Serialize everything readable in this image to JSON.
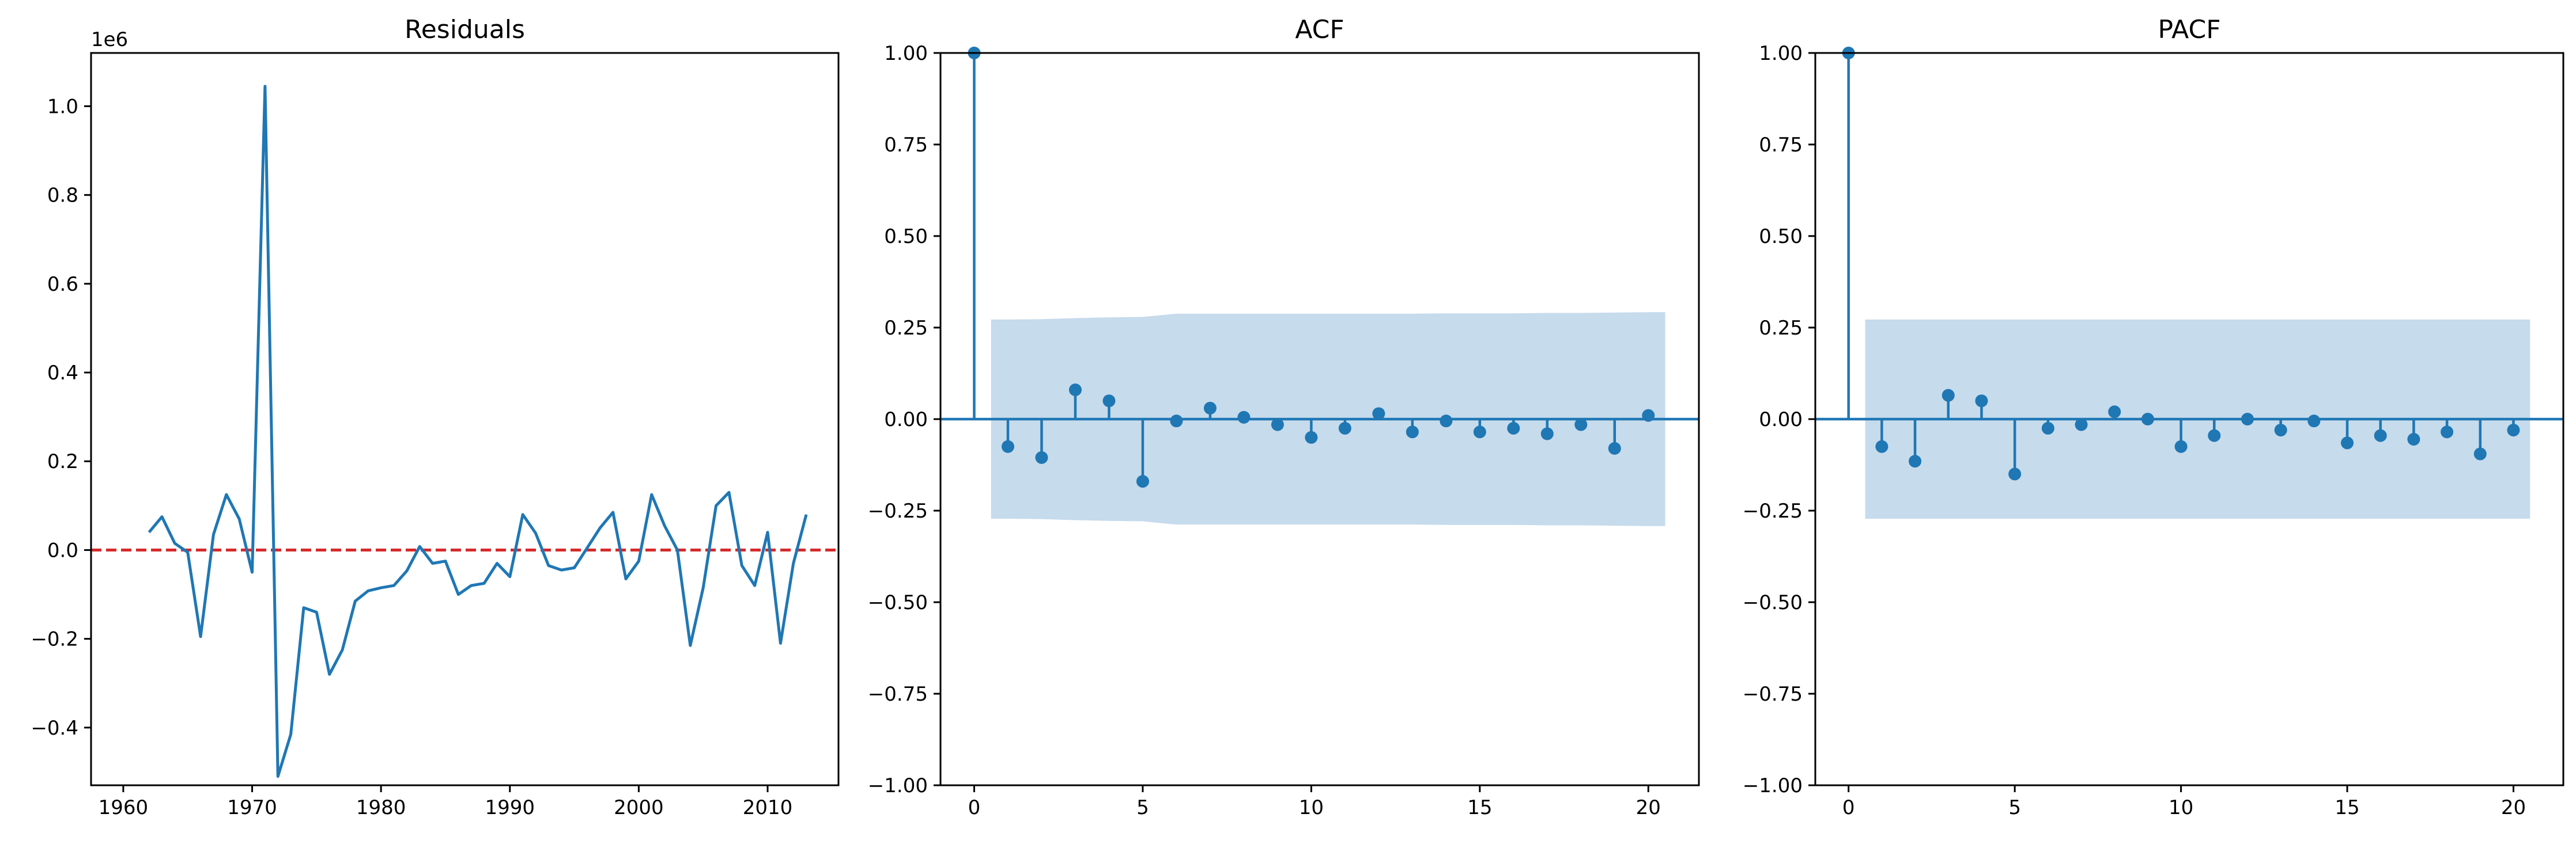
{
  "colors": {
    "line": "#1f77b4",
    "zero_line": "#d62728",
    "conf_band": "#c6dbec",
    "axes": "#000000",
    "background": "#ffffff"
  },
  "chart_data": [
    {
      "type": "line",
      "title": "Residuals",
      "y_offset_label": "1e6",
      "xlabel": "",
      "ylabel": "",
      "grid": false,
      "xlim": [
        1957.5,
        2015.5
      ],
      "ylim": [
        -0.53,
        1.12
      ],
      "x_ticks": [
        1960,
        1970,
        1980,
        1990,
        2000,
        2010
      ],
      "x_tick_labels": [
        "1960",
        "1970",
        "1980",
        "1990",
        "2000",
        "2010"
      ],
      "y_ticks": [
        -0.4,
        -0.2,
        0.0,
        0.2,
        0.4,
        0.6,
        0.8,
        1.0
      ],
      "y_tick_labels": [
        "−0.4",
        "−0.2",
        "0.0",
        "0.2",
        "0.4",
        "0.6",
        "0.8",
        "1.0"
      ],
      "reference_line": {
        "y": 0,
        "style": "dashed"
      },
      "series": [
        {
          "x": [
            1962,
            1963,
            1964,
            1965,
            1966,
            1967,
            1968,
            1969,
            1970,
            1971,
            1972,
            1973,
            1974,
            1975,
            1976,
            1977,
            1978,
            1979,
            1980,
            1981,
            1982,
            1983,
            1984,
            1985,
            1986,
            1987,
            1988,
            1989,
            1990,
            1991,
            1992,
            1993,
            1994,
            1995,
            1996,
            1997,
            1998,
            1999,
            2000,
            2001,
            2002,
            2003,
            2004,
            2005,
            2006,
            2007,
            2008,
            2009,
            2010,
            2011,
            2012,
            2013
          ],
          "y": [
            0.04,
            0.075,
            0.015,
            -0.005,
            -0.195,
            0.035,
            0.125,
            0.07,
            -0.05,
            1.045,
            -0.51,
            -0.415,
            -0.13,
            -0.14,
            -0.28,
            -0.225,
            -0.115,
            -0.092,
            -0.085,
            -0.08,
            -0.047,
            0.008,
            -0.03,
            -0.025,
            -0.1,
            -0.08,
            -0.075,
            -0.03,
            -0.06,
            0.08,
            0.038,
            -0.035,
            -0.045,
            -0.04,
            0.005,
            0.05,
            0.085,
            -0.065,
            -0.025,
            0.125,
            0.055,
            0.0,
            -0.215,
            -0.085,
            0.1,
            0.13,
            -0.035,
            -0.08,
            0.04,
            -0.21,
            -0.03,
            0.08
          ]
        }
      ]
    },
    {
      "type": "stem",
      "title": "ACF",
      "xlabel": "",
      "ylabel": "",
      "grid": false,
      "xlim": [
        -1.0,
        21.5
      ],
      "ylim": [
        -1.0,
        1.0
      ],
      "x_ticks": [
        0,
        5,
        10,
        15,
        20
      ],
      "x_tick_labels": [
        "0",
        "5",
        "10",
        "15",
        "20"
      ],
      "y_ticks": [
        -1.0,
        -0.75,
        -0.5,
        -0.25,
        0.0,
        0.25,
        0.5,
        0.75,
        1.0
      ],
      "y_tick_labels": [
        "−1.00",
        "−0.75",
        "−0.50",
        "−0.25",
        "0.00",
        "0.25",
        "0.50",
        "0.75",
        "1.00"
      ],
      "lags": [
        0,
        1,
        2,
        3,
        4,
        5,
        6,
        7,
        8,
        9,
        10,
        11,
        12,
        13,
        14,
        15,
        16,
        17,
        18,
        19,
        20
      ],
      "values": [
        1.0,
        -0.075,
        -0.105,
        0.08,
        0.05,
        -0.17,
        -0.005,
        0.03,
        0.005,
        -0.015,
        -0.05,
        -0.025,
        0.015,
        -0.035,
        -0.005,
        -0.035,
        -0.025,
        -0.04,
        -0.015,
        -0.08,
        0.01
      ],
      "confidence_band": {
        "x": [
          0.5,
          1,
          2,
          3,
          4,
          5,
          6,
          7,
          8,
          9,
          10,
          11,
          12,
          13,
          14,
          15,
          16,
          17,
          18,
          19,
          20,
          20.5
        ],
        "upper": [
          0.272,
          0.272,
          0.273,
          0.276,
          0.278,
          0.279,
          0.288,
          0.288,
          0.288,
          0.288,
          0.288,
          0.288,
          0.288,
          0.288,
          0.289,
          0.289,
          0.289,
          0.29,
          0.29,
          0.291,
          0.292,
          0.292
        ]
      }
    },
    {
      "type": "stem",
      "title": "PACF",
      "xlabel": "",
      "ylabel": "",
      "grid": false,
      "xlim": [
        -1.0,
        21.5
      ],
      "ylim": [
        -1.0,
        1.0
      ],
      "x_ticks": [
        0,
        5,
        10,
        15,
        20
      ],
      "x_tick_labels": [
        "0",
        "5",
        "10",
        "15",
        "20"
      ],
      "y_ticks": [
        -1.0,
        -0.75,
        -0.5,
        -0.25,
        0.0,
        0.25,
        0.5,
        0.75,
        1.0
      ],
      "y_tick_labels": [
        "−1.00",
        "−0.75",
        "−0.50",
        "−0.25",
        "0.00",
        "0.25",
        "0.50",
        "0.75",
        "1.00"
      ],
      "lags": [
        0,
        1,
        2,
        3,
        4,
        5,
        6,
        7,
        8,
        9,
        10,
        11,
        12,
        13,
        14,
        15,
        16,
        17,
        18,
        19,
        20
      ],
      "values": [
        1.0,
        -0.075,
        -0.115,
        0.065,
        0.05,
        -0.15,
        -0.025,
        -0.015,
        0.02,
        0.0,
        -0.075,
        -0.045,
        0.0,
        -0.03,
        -0.005,
        -0.065,
        -0.045,
        -0.055,
        -0.035,
        -0.095,
        -0.03
      ],
      "confidence_band": {
        "x": [
          0.5,
          20.5
        ],
        "upper": [
          0.272,
          0.272
        ]
      }
    }
  ]
}
